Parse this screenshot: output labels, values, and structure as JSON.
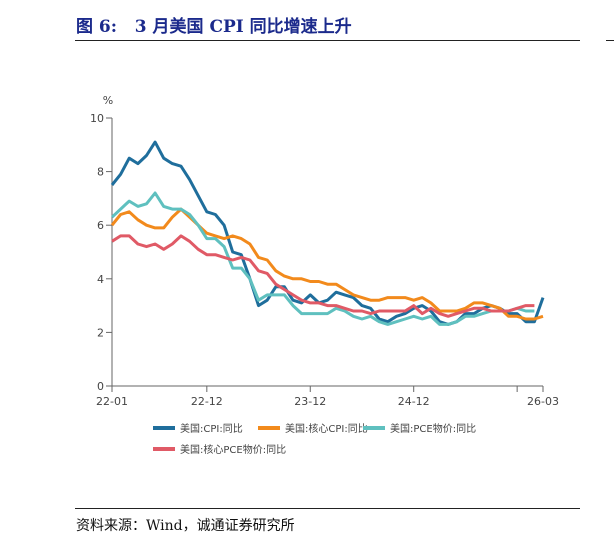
{
  "figure": {
    "title": "图 6:   3 月美国 CPI 同比增速上升",
    "source": "资料来源：Wind，诚通证券研究所"
  },
  "chart_data": {
    "type": "line",
    "title": "",
    "ylabel": "%",
    "xlabel": "",
    "ylim": [
      0,
      10
    ],
    "yticks": [
      0,
      2,
      4,
      6,
      8,
      10
    ],
    "x": [
      "22-01",
      "22-02",
      "22-03",
      "22-04",
      "22-05",
      "22-06",
      "22-07",
      "22-08",
      "22-09",
      "22-10",
      "22-11",
      "22-12",
      "23-01",
      "23-02",
      "23-03",
      "23-04",
      "23-05",
      "23-06",
      "23-07",
      "23-08",
      "23-09",
      "23-10",
      "23-11",
      "23-12",
      "24-01",
      "24-02",
      "24-03",
      "24-04",
      "24-05",
      "24-06",
      "24-07",
      "24-08",
      "24-09",
      "24-10",
      "24-11",
      "24-12",
      "25-01",
      "25-02",
      "25-03",
      "25-04",
      "25-05",
      "25-06",
      "25-07",
      "25-08",
      "25-09",
      "25-10",
      "25-11",
      "25-12",
      "26-01",
      "26-02",
      "26-03"
    ],
    "xtick_labels": [
      "22-01",
      "22-12",
      "23-12",
      "24-12",
      "26-03"
    ],
    "grid": false,
    "legend_position": "bottom",
    "series": [
      {
        "name": "美国:CPI:同比",
        "color": "#1f6e9c",
        "values": [
          7.5,
          7.9,
          8.5,
          8.3,
          8.6,
          9.1,
          8.5,
          8.3,
          8.2,
          7.7,
          7.1,
          6.5,
          6.4,
          6.0,
          5.0,
          4.9,
          4.0,
          3.0,
          3.2,
          3.7,
          3.7,
          3.2,
          3.1,
          3.4,
          3.1,
          3.2,
          3.5,
          3.4,
          3.3,
          3.0,
          2.9,
          2.5,
          2.4,
          2.6,
          2.7,
          2.9,
          3.0,
          2.8,
          2.4,
          2.3,
          2.4,
          2.7,
          2.7,
          2.9,
          3.0,
          2.9,
          2.7,
          2.7,
          2.4,
          2.4,
          3.3
        ]
      },
      {
        "name": "美国:核心CPI:同比",
        "color": "#f28a1c",
        "values": [
          6.0,
          6.4,
          6.5,
          6.2,
          6.0,
          5.9,
          5.9,
          6.3,
          6.6,
          6.3,
          6.0,
          5.7,
          5.6,
          5.5,
          5.6,
          5.5,
          5.3,
          4.8,
          4.7,
          4.3,
          4.1,
          4.0,
          4.0,
          3.9,
          3.9,
          3.8,
          3.8,
          3.6,
          3.4,
          3.3,
          3.2,
          3.2,
          3.3,
          3.3,
          3.3,
          3.2,
          3.3,
          3.1,
          2.8,
          2.8,
          2.8,
          2.9,
          3.1,
          3.1,
          3.0,
          2.9,
          2.6,
          2.6,
          2.5,
          2.5,
          2.6
        ]
      },
      {
        "name": "美国:PCE物价:同比",
        "color": "#5fc0bf",
        "values": [
          6.3,
          6.6,
          6.9,
          6.7,
          6.8,
          7.2,
          6.7,
          6.6,
          6.6,
          6.4,
          6.0,
          5.5,
          5.5,
          5.2,
          4.4,
          4.4,
          4.0,
          3.2,
          3.4,
          3.4,
          3.4,
          3.0,
          2.7,
          2.7,
          2.7,
          2.7,
          2.9,
          2.8,
          2.6,
          2.5,
          2.6,
          2.4,
          2.3,
          2.4,
          2.5,
          2.6,
          2.5,
          2.6,
          2.3,
          2.3,
          2.4,
          2.6,
          2.6,
          2.7,
          2.8,
          2.8,
          2.8,
          2.9,
          2.8,
          2.8,
          null
        ]
      },
      {
        "name": "美国:核心PCE物价:同比",
        "color": "#e05a66",
        "values": [
          5.4,
          5.6,
          5.6,
          5.3,
          5.2,
          5.3,
          5.1,
          5.3,
          5.6,
          5.4,
          5.1,
          4.9,
          4.9,
          4.8,
          4.7,
          4.8,
          4.7,
          4.3,
          4.2,
          3.8,
          3.6,
          3.4,
          3.2,
          3.1,
          3.1,
          3.0,
          3.0,
          2.9,
          2.8,
          2.8,
          2.7,
          2.8,
          2.8,
          2.8,
          2.8,
          3.0,
          2.7,
          2.9,
          2.7,
          2.6,
          2.7,
          2.8,
          2.9,
          2.9,
          2.8,
          2.8,
          2.8,
          2.9,
          3.0,
          3.0,
          null
        ]
      }
    ]
  }
}
